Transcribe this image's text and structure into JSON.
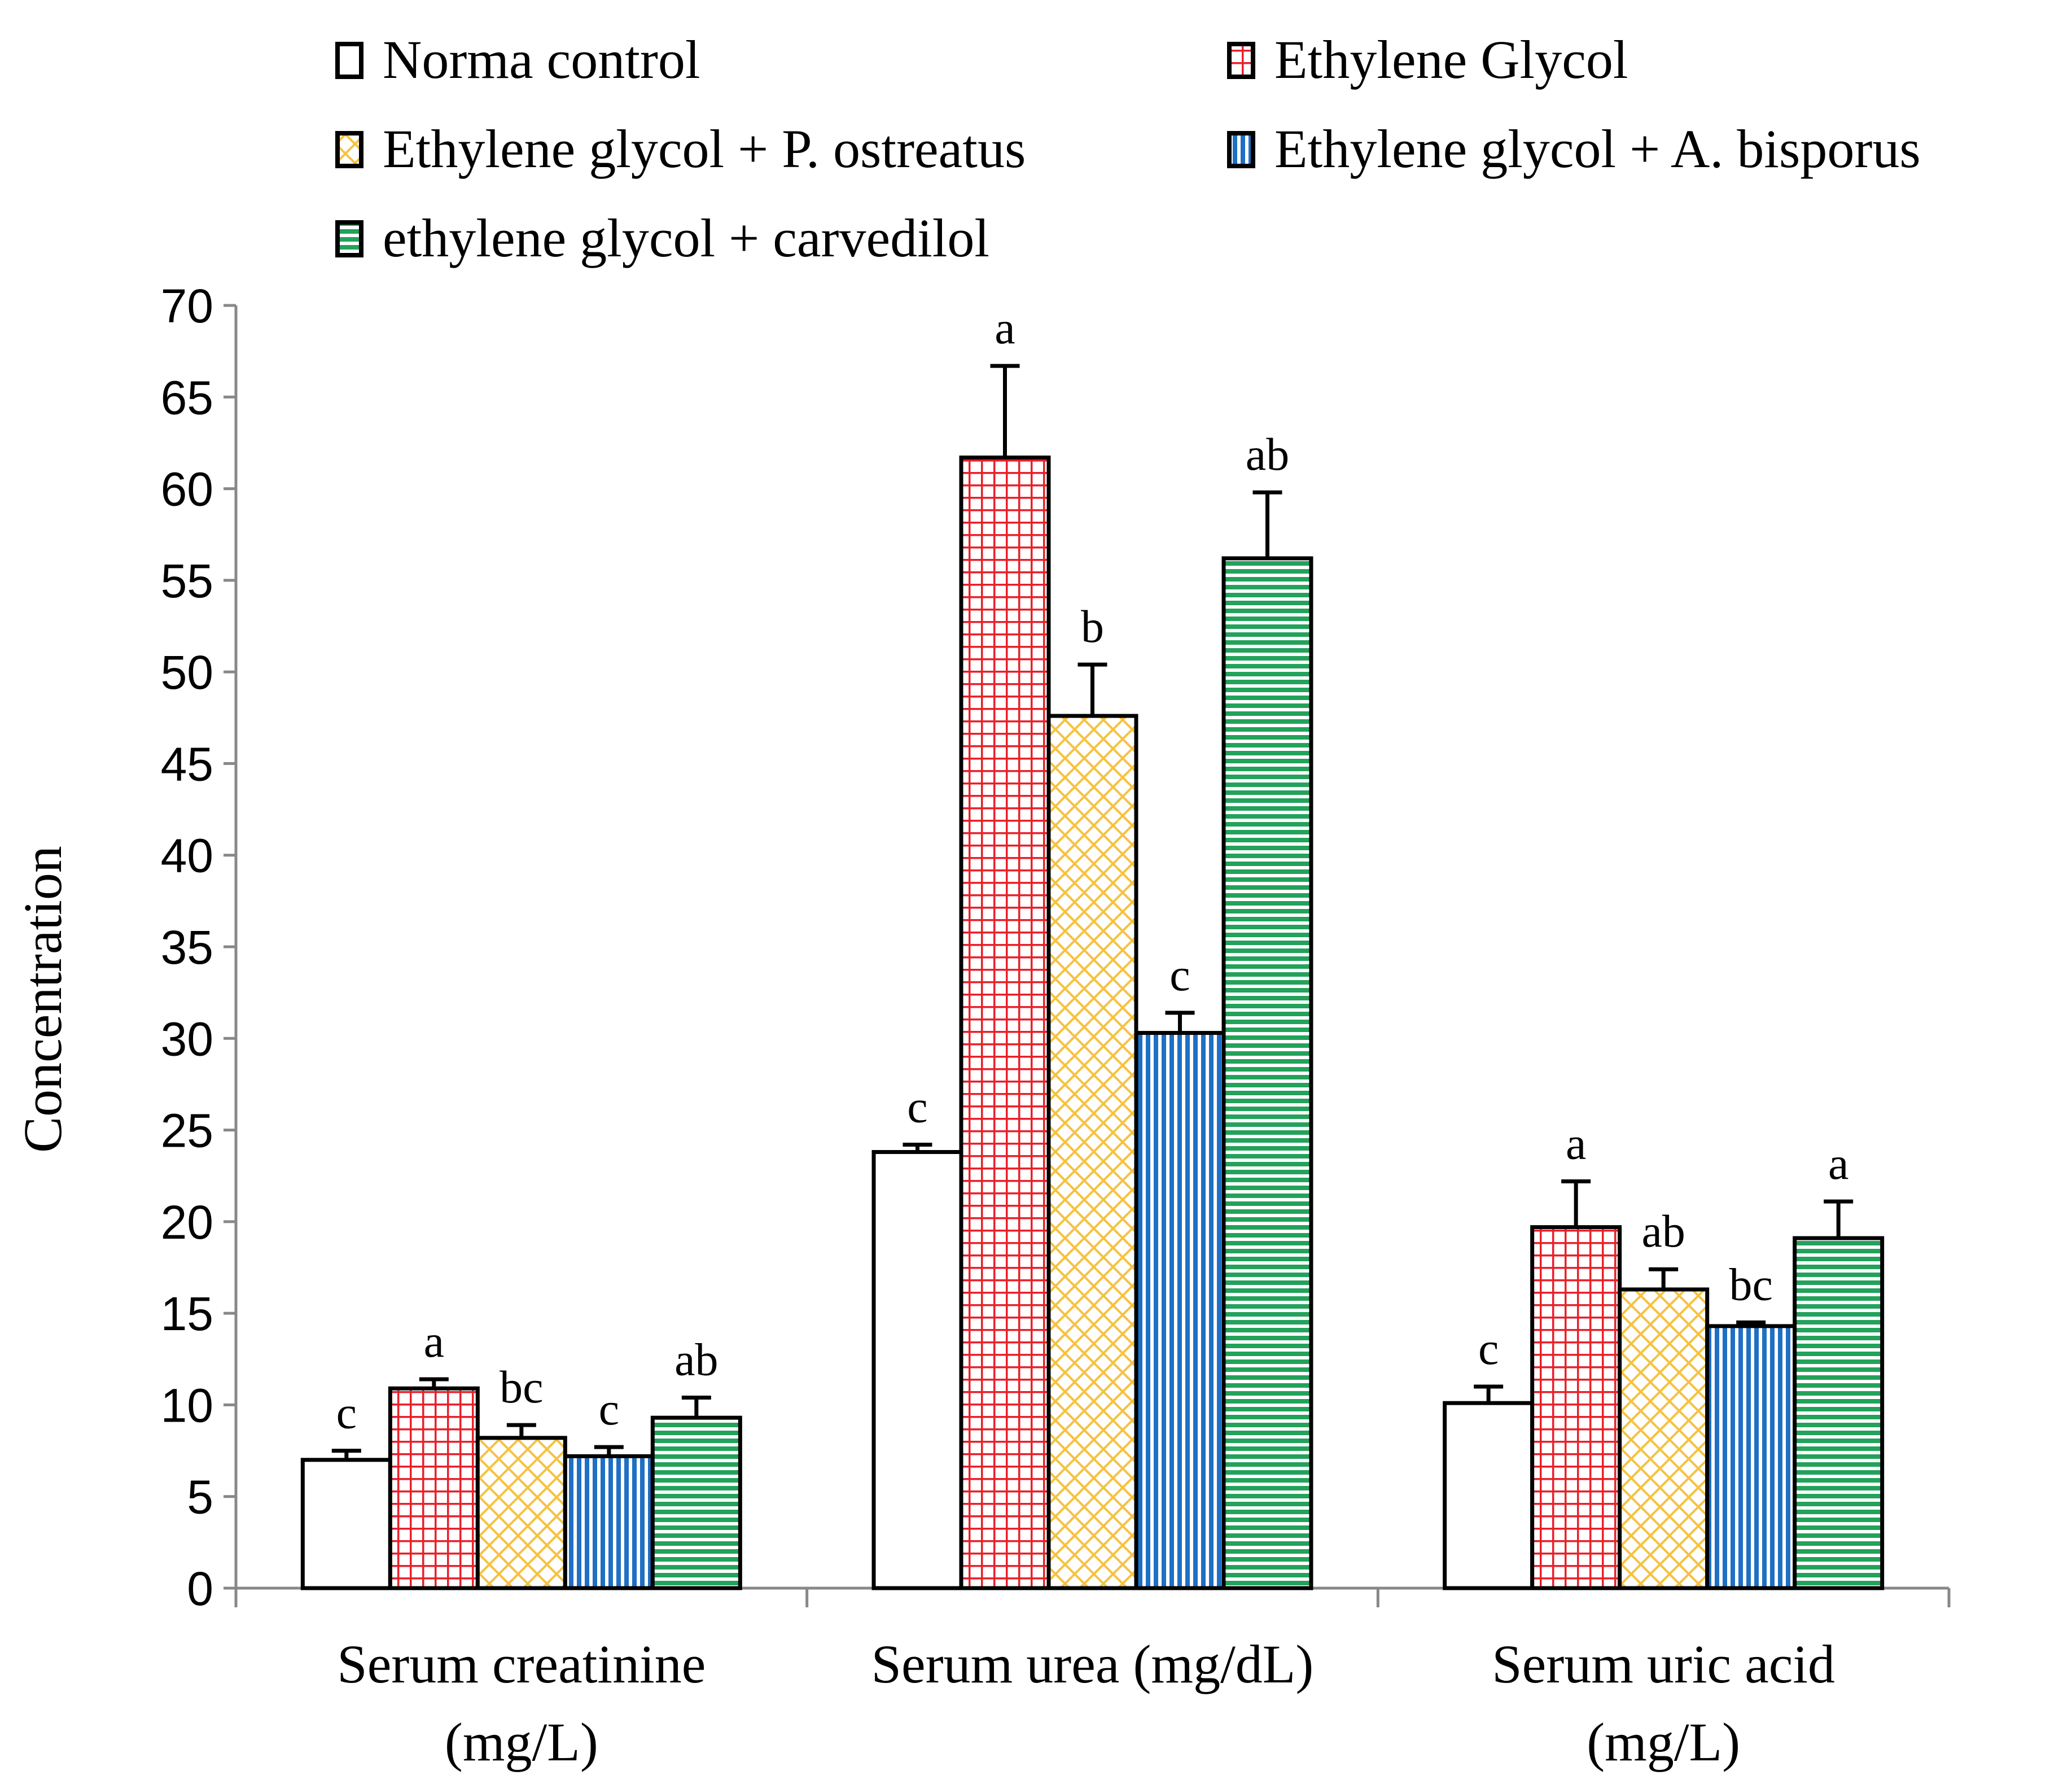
{
  "chart_data": {
    "type": "bar",
    "title": "",
    "xlabel": "",
    "ylabel": "Concentration",
    "ylim": [
      0,
      70
    ],
    "yticks": [
      0,
      5,
      10,
      15,
      20,
      25,
      30,
      35,
      40,
      45,
      50,
      55,
      60,
      65,
      70
    ],
    "categories": [
      {
        "line1": "Serum creatinine",
        "line2": "(mg/L)"
      },
      {
        "line1": "Serum urea (mg/dL)",
        "line2": ""
      },
      {
        "line1": "Serum uric acid",
        "line2": "(mg/L)"
      }
    ],
    "series": [
      {
        "name": "Norma control",
        "pattern": "none",
        "fill": "#ffffff",
        "stroke": "#000000",
        "values": [
          7.0,
          23.8,
          10.1
        ],
        "errors": [
          0.5,
          0.4,
          0.9
        ],
        "letters": [
          "c",
          "c",
          "c"
        ]
      },
      {
        "name": "Ethylene Glycol",
        "pattern": "grid",
        "fill": "#ffffff",
        "color": "#e8202a",
        "values": [
          10.9,
          61.7,
          19.7
        ],
        "errors": [
          0.5,
          5.0,
          2.5
        ],
        "letters": [
          "a",
          "a",
          "a"
        ]
      },
      {
        "name": "Ethylene glycol + P. ostreatus",
        "pattern": "diamond",
        "fill": "#ffffff",
        "color": "#f5c242",
        "values": [
          8.2,
          47.6,
          16.3
        ],
        "errors": [
          0.7,
          2.8,
          1.1
        ],
        "letters": [
          "bc",
          "b",
          "ab"
        ]
      },
      {
        "name": "Ethylene glycol + A. bisporus",
        "pattern": "vertical",
        "fill": "#ffffff",
        "color": "#1f6fc5",
        "values": [
          7.2,
          30.3,
          14.3
        ],
        "errors": [
          0.5,
          1.1,
          0.2
        ],
        "letters": [
          "c",
          "c",
          "bc"
        ]
      },
      {
        "name": "ethylene glycol + carvedilol",
        "pattern": "horizontal",
        "fill": "#ffffff",
        "color": "#22a25a",
        "values": [
          9.3,
          56.2,
          19.1
        ],
        "errors": [
          1.1,
          3.6,
          2.0
        ],
        "letters": [
          "ab",
          "ab",
          "a"
        ]
      }
    ],
    "legend_position": "top"
  }
}
